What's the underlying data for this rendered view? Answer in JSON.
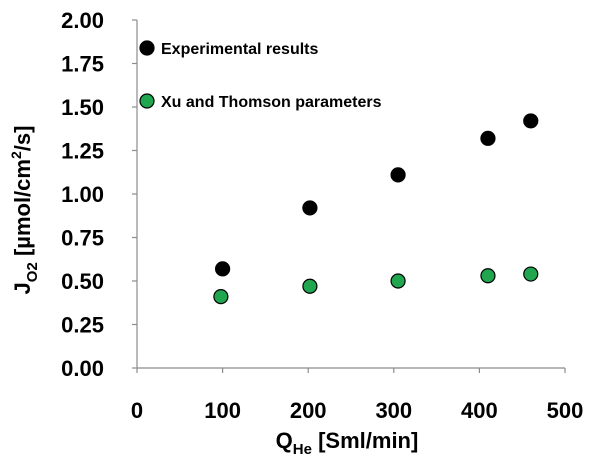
{
  "chart_data": {
    "type": "scatter",
    "xlabel": {
      "main": "Q",
      "sub": "He",
      "rest": " [Sml/min]"
    },
    "ylabel": {
      "main": "J",
      "sub": "O2",
      "rest1": " [µmol/cm",
      "sup": "2",
      "rest2": "/s]"
    },
    "xlim": [
      0,
      500
    ],
    "ylim": [
      0,
      2
    ],
    "xticks": [
      0,
      100,
      200,
      300,
      400,
      500
    ],
    "xtick_labels": [
      "0",
      "100",
      "200",
      "300",
      "400",
      "500"
    ],
    "yticks": [
      0,
      0.25,
      0.5,
      0.75,
      1.0,
      1.25,
      1.5,
      1.75,
      2.0
    ],
    "ytick_labels": [
      "0.00",
      "0.25",
      "0.50",
      "0.75",
      "1.00",
      "1.25",
      "1.50",
      "1.75",
      "2.00"
    ],
    "grid": false,
    "legend_position": "top-left",
    "series": [
      {
        "name": "Experimental results",
        "color": "#000000",
        "x": [
          100,
          202,
          305,
          410,
          460
        ],
        "y": [
          0.57,
          0.92,
          1.11,
          1.32,
          1.42
        ]
      },
      {
        "name": "Xu and Thomson parameters",
        "color": "#1fa64f",
        "x": [
          98,
          202,
          305,
          410,
          460
        ],
        "y": [
          0.41,
          0.47,
          0.5,
          0.53,
          0.54
        ]
      }
    ]
  }
}
